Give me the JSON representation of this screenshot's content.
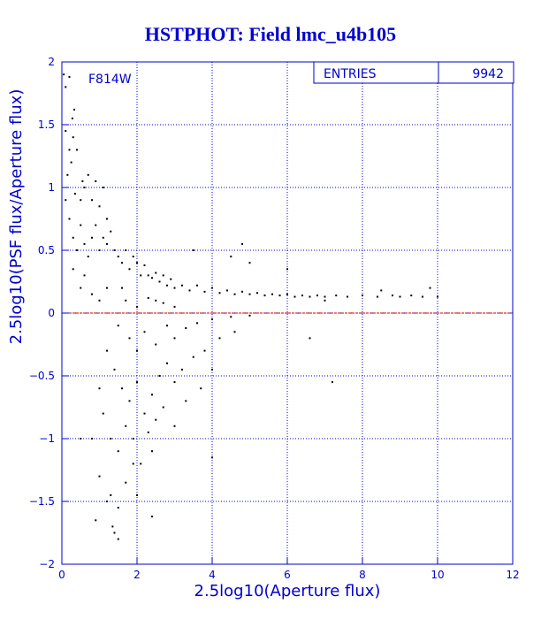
{
  "chart_data": {
    "type": "scatter",
    "title": "HSTPHOT: Field lmc_u4b105",
    "xlabel": "2.5log10(Aperture flux)",
    "ylabel": "2.5log10(PSF flux/Aperture flux)",
    "xlim": [
      0,
      12
    ],
    "ylim": [
      -2,
      2
    ],
    "xticks": [
      0,
      2,
      4,
      6,
      8,
      10,
      12
    ],
    "yticks": [
      -2,
      -1.5,
      -1,
      -0.5,
      0,
      0.5,
      1,
      1.5,
      2
    ],
    "grid": true,
    "filter_label": "F814W",
    "stats_box": {
      "label": "ENTRIES",
      "value": "9942"
    },
    "reference_line": {
      "y": 0,
      "color": "#cc0000"
    },
    "colors": {
      "axis": "#0000cc",
      "points": "#000000",
      "background": "#ffffff"
    },
    "series": [
      {
        "points": [
          [
            0.05,
            1.9
          ],
          [
            0.1,
            1.8
          ],
          [
            0.2,
            1.88
          ],
          [
            0.28,
            1.55
          ],
          [
            0.3,
            1.4
          ],
          [
            0.33,
            1.62
          ],
          [
            0.4,
            1.3
          ],
          [
            0.55,
            1.05
          ],
          [
            0.1,
            1.45
          ],
          [
            0.2,
            1.3
          ],
          [
            0.25,
            1.2
          ],
          [
            0.15,
            1.1
          ],
          [
            0.35,
            0.95
          ],
          [
            0.5,
            0.9
          ],
          [
            0.6,
            1.0
          ],
          [
            0.7,
            1.1
          ],
          [
            0.8,
            0.9
          ],
          [
            0.9,
            1.05
          ],
          [
            1.0,
            0.85
          ],
          [
            1.1,
            1.0
          ],
          [
            1.2,
            0.75
          ],
          [
            0.1,
            0.9
          ],
          [
            0.2,
            0.75
          ],
          [
            0.3,
            0.6
          ],
          [
            0.4,
            0.5
          ],
          [
            0.5,
            0.7
          ],
          [
            0.6,
            0.55
          ],
          [
            0.7,
            0.45
          ],
          [
            0.8,
            0.6
          ],
          [
            0.9,
            0.7
          ],
          [
            1.0,
            0.5
          ],
          [
            1.1,
            0.6
          ],
          [
            1.2,
            0.55
          ],
          [
            1.3,
            0.65
          ],
          [
            1.4,
            0.5
          ],
          [
            1.5,
            0.45
          ],
          [
            1.6,
            0.4
          ],
          [
            1.7,
            0.5
          ],
          [
            1.8,
            0.35
          ],
          [
            1.9,
            0.45
          ],
          [
            2.0,
            0.4
          ],
          [
            2.1,
            0.3
          ],
          [
            2.2,
            0.38
          ],
          [
            2.3,
            0.3
          ],
          [
            2.4,
            0.28
          ],
          [
            2.5,
            0.32
          ],
          [
            2.6,
            0.25
          ],
          [
            2.7,
            0.3
          ],
          [
            2.8,
            0.22
          ],
          [
            2.9,
            0.27
          ],
          [
            3.0,
            0.2
          ],
          [
            3.2,
            0.22
          ],
          [
            3.4,
            0.18
          ],
          [
            3.6,
            0.22
          ],
          [
            3.8,
            0.17
          ],
          [
            4.0,
            0.2
          ],
          [
            4.2,
            0.16
          ],
          [
            4.4,
            0.18
          ],
          [
            4.6,
            0.15
          ],
          [
            4.8,
            0.17
          ],
          [
            5.0,
            0.15
          ],
          [
            5.2,
            0.16
          ],
          [
            5.4,
            0.14
          ],
          [
            5.6,
            0.15
          ],
          [
            5.8,
            0.14
          ],
          [
            6.0,
            0.15
          ],
          [
            6.2,
            0.13
          ],
          [
            6.4,
            0.14
          ],
          [
            6.6,
            0.13
          ],
          [
            6.8,
            0.14
          ],
          [
            7.0,
            0.13
          ],
          [
            7.3,
            0.14
          ],
          [
            7.6,
            0.13
          ],
          [
            8.0,
            0.14
          ],
          [
            8.4,
            0.13
          ],
          [
            8.5,
            0.18
          ],
          [
            8.8,
            0.14
          ],
          [
            9.0,
            0.13
          ],
          [
            9.3,
            0.14
          ],
          [
            9.6,
            0.13
          ],
          [
            9.8,
            0.2
          ],
          [
            10.0,
            0.13
          ],
          [
            5.0,
            0.4
          ],
          [
            4.5,
            0.45
          ],
          [
            3.5,
            0.5
          ],
          [
            6.0,
            0.35
          ],
          [
            7.0,
            0.1
          ],
          [
            4.8,
            0.55
          ],
          [
            1.5,
            -0.1
          ],
          [
            1.8,
            -0.2
          ],
          [
            2.0,
            -0.3
          ],
          [
            2.2,
            -0.15
          ],
          [
            2.5,
            -0.25
          ],
          [
            2.8,
            -0.1
          ],
          [
            3.0,
            -0.2
          ],
          [
            3.3,
            -0.12
          ],
          [
            3.6,
            -0.08
          ],
          [
            4.0,
            -0.05
          ],
          [
            4.5,
            -0.03
          ],
          [
            5.0,
            -0.02
          ],
          [
            1.2,
            -0.3
          ],
          [
            1.4,
            -0.45
          ],
          [
            1.6,
            -0.6
          ],
          [
            1.8,
            -0.7
          ],
          [
            2.0,
            -0.55
          ],
          [
            2.2,
            -0.8
          ],
          [
            2.4,
            -0.65
          ],
          [
            2.6,
            -0.5
          ],
          [
            2.8,
            -0.4
          ],
          [
            3.0,
            -0.55
          ],
          [
            3.2,
            -0.45
          ],
          [
            3.5,
            -0.35
          ],
          [
            3.8,
            -0.3
          ],
          [
            4.2,
            -0.2
          ],
          [
            4.6,
            -0.15
          ],
          [
            1.0,
            -0.6
          ],
          [
            1.1,
            -0.8
          ],
          [
            1.3,
            -1.0
          ],
          [
            1.5,
            -1.1
          ],
          [
            1.7,
            -0.9
          ],
          [
            1.9,
            -1.0
          ],
          [
            2.1,
            -1.2
          ],
          [
            2.3,
            -0.95
          ],
          [
            2.5,
            -0.85
          ],
          [
            2.7,
            -0.75
          ],
          [
            3.0,
            -0.9
          ],
          [
            3.3,
            -0.7
          ],
          [
            3.7,
            -0.6
          ],
          [
            4.0,
            -0.45
          ],
          [
            0.5,
            -1.0
          ],
          [
            0.8,
            -1.0
          ],
          [
            1.0,
            -1.3
          ],
          [
            1.3,
            -1.45
          ],
          [
            1.5,
            -1.55
          ],
          [
            1.7,
            -1.35
          ],
          [
            1.9,
            -1.2
          ],
          [
            2.0,
            -1.45
          ],
          [
            2.4,
            -1.1
          ],
          [
            1.2,
            -1.5
          ],
          [
            1.35,
            -1.7
          ],
          [
            1.4,
            -1.75
          ],
          [
            0.9,
            -1.65
          ],
          [
            1.5,
            -1.8
          ],
          [
            2.4,
            -1.62
          ],
          [
            4.0,
            -1.15
          ],
          [
            6.6,
            -0.2
          ],
          [
            7.2,
            -0.55
          ],
          [
            2.0,
            0.05
          ],
          [
            2.5,
            0.1
          ],
          [
            3.0,
            0.05
          ],
          [
            1.0,
            0.1
          ],
          [
            1.2,
            0.2
          ],
          [
            0.5,
            0.2
          ],
          [
            0.3,
            0.35
          ],
          [
            0.6,
            0.3
          ],
          [
            0.8,
            0.15
          ],
          [
            1.6,
            0.2
          ],
          [
            1.7,
            0.1
          ],
          [
            2.3,
            0.12
          ],
          [
            2.7,
            0.08
          ]
        ]
      }
    ]
  }
}
